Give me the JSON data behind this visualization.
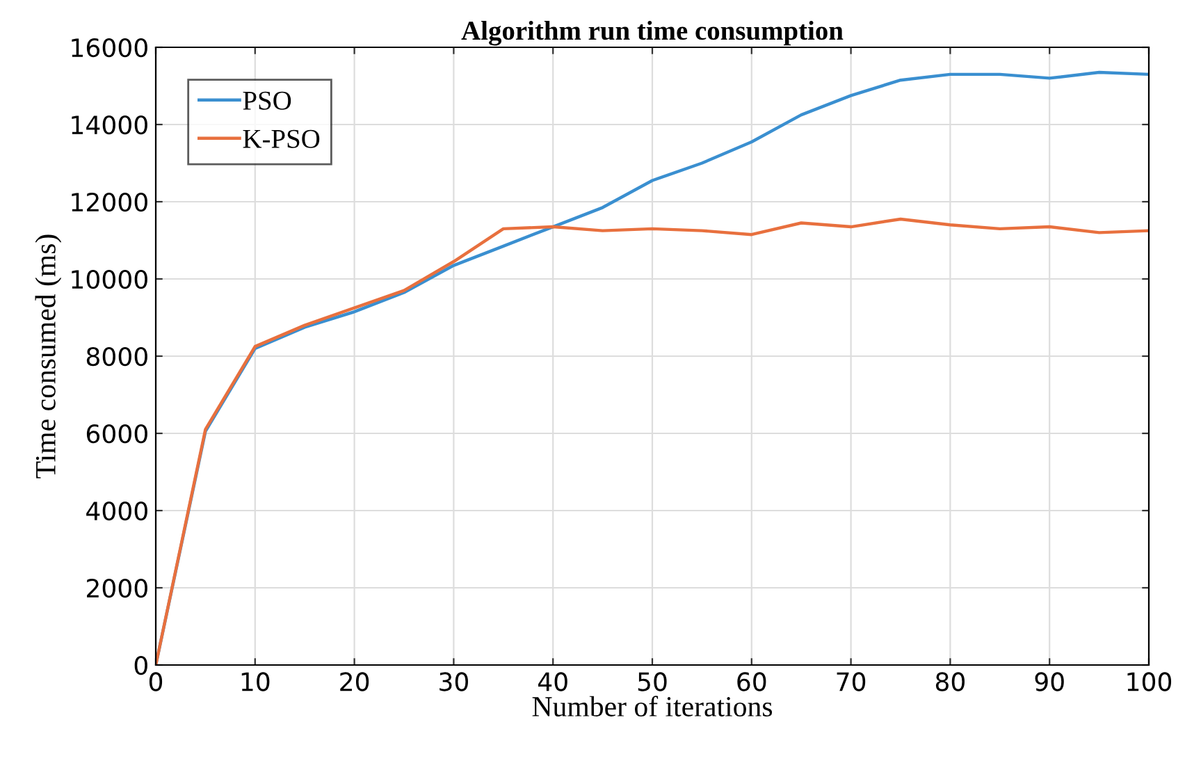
{
  "chart_data": {
    "type": "line",
    "title": "Algorithm run time consumption",
    "xlabel": "Number of iterations",
    "ylabel": "Time consumed (ms)",
    "x": [
      0,
      5,
      10,
      15,
      20,
      25,
      30,
      35,
      40,
      45,
      50,
      55,
      60,
      65,
      70,
      75,
      80,
      85,
      90,
      95,
      100
    ],
    "series": [
      {
        "name": "PSO",
        "color": "#3a8fd0",
        "values": [
          0,
          6050,
          8200,
          8750,
          9150,
          9650,
          10350,
          10850,
          11350,
          11850,
          12550,
          13000,
          13550,
          14250,
          14750,
          15150,
          15300,
          15300,
          15200,
          15350,
          15300
        ]
      },
      {
        "name": "K-PSO",
        "color": "#e8703e",
        "values": [
          0,
          6100,
          8250,
          8800,
          9250,
          9700,
          10450,
          11300,
          11350,
          11250,
          11300,
          11250,
          11150,
          11450,
          11350,
          11550,
          11400,
          11300,
          11350,
          11200,
          11250
        ]
      }
    ],
    "xlim": [
      0,
      100
    ],
    "xticks": [
      0,
      10,
      20,
      30,
      40,
      50,
      60,
      70,
      80,
      90,
      100
    ],
    "ylim": [
      0,
      16000
    ],
    "yticks": [
      0,
      2000,
      4000,
      6000,
      8000,
      10000,
      12000,
      14000,
      16000
    ],
    "grid": true,
    "legend": "top left",
    "line_style": "solid",
    "marker": "none"
  }
}
